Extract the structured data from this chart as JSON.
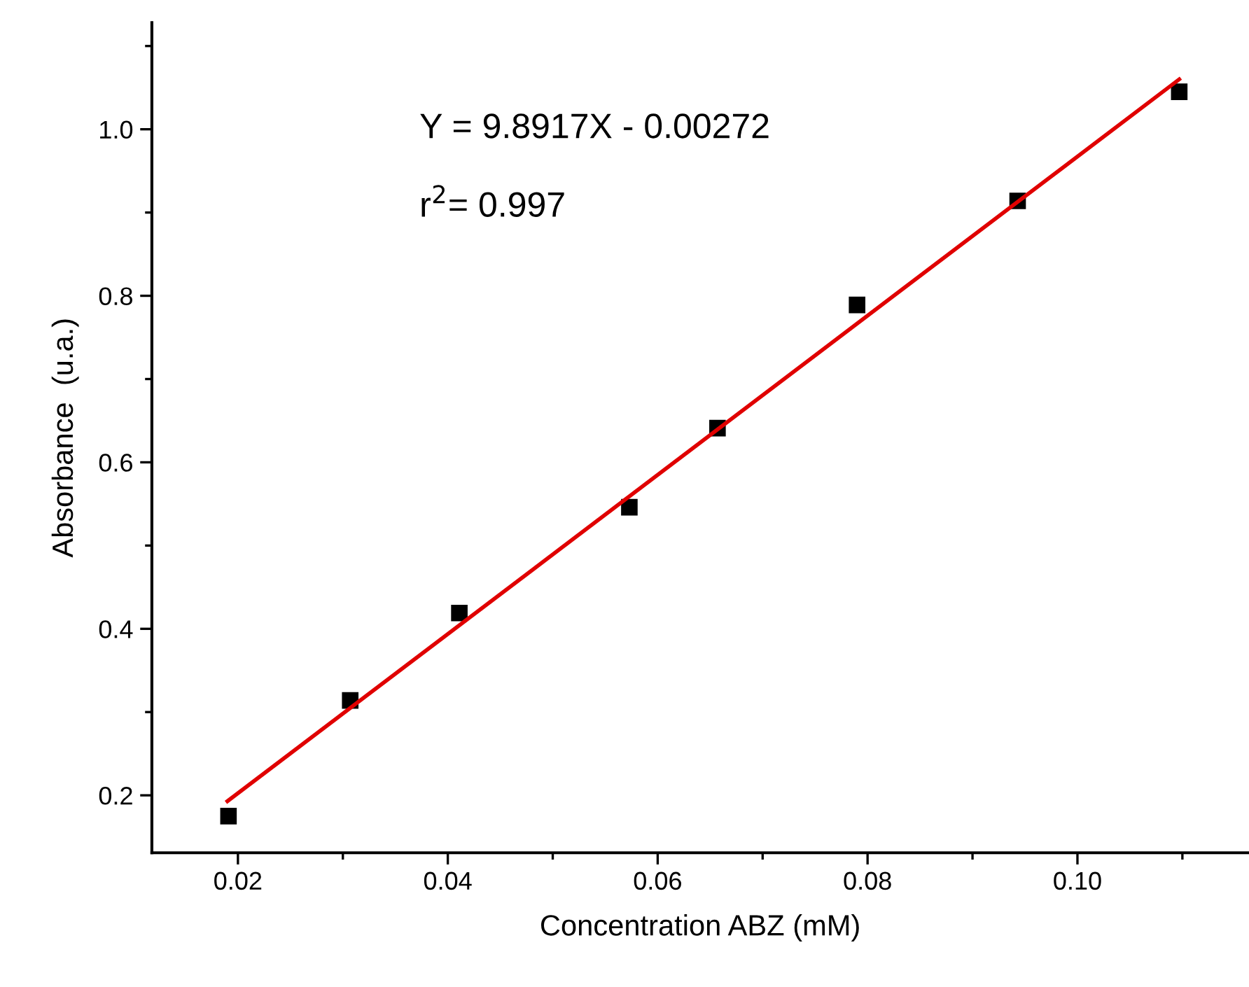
{
  "chart_data": {
    "type": "scatter",
    "xlabel": "Concentration ABZ (mM)",
    "ylabel": "Absorbance  (u.a.)",
    "xlim": [
      0.0118,
      0.1163
    ],
    "xticks": [
      0.02,
      0.04,
      0.06,
      0.08,
      {
        "value": 0.1,
        "label": "0.10"
      }
    ],
    "ylim": [
      0.131,
      1.128
    ],
    "yticks": [
      0.2,
      0.4,
      0.6,
      0.8,
      {
        "value": 1.0,
        "label": "1.0"
      }
    ],
    "series": [
      {
        "color": "#000000",
        "marker": "square",
        "x": [
          0.0191,
          0.0307,
          0.0411,
          0.0573,
          0.0657,
          0.079,
          0.0943,
          0.1097
        ],
        "values": [
          0.175,
          0.314,
          0.419,
          0.546,
          0.641,
          0.789,
          0.914,
          1.045
        ]
      },
      {
        "type": "line",
        "color": "#e00000",
        "marker": "none",
        "line_style": "solid",
        "x": [
          0.019,
          0.1097
        ],
        "values": [
          0.193,
          1.06
        ]
      }
    ],
    "annotations": [
      "Y = 9.8917X - 0.00272",
      "r$^{2}$= 0.997"
    ],
    "grid": false,
    "legend": false
  }
}
